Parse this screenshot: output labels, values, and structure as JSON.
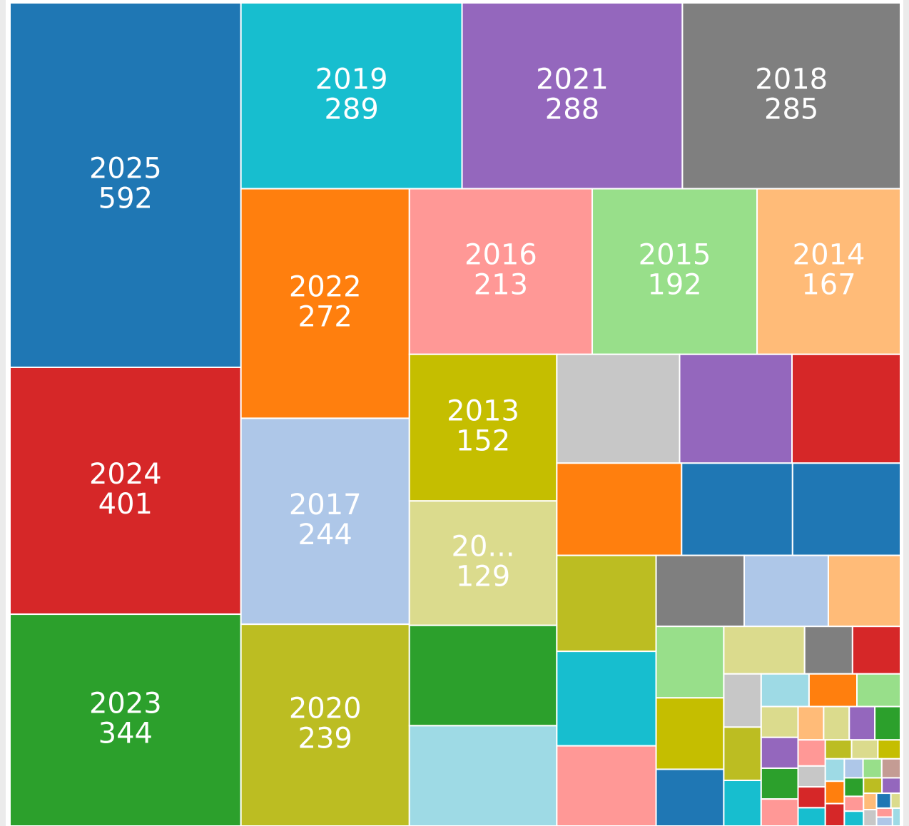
{
  "chart_data": {
    "type": "treemap",
    "categories": [
      "2025",
      "2024",
      "2023",
      "2019",
      "2021",
      "2018",
      "2022",
      "2017",
      "2020",
      "2016",
      "2015",
      "2014",
      "2013",
      "20...",
      null,
      null,
      null,
      null,
      null,
      null,
      null,
      null,
      null,
      null,
      null,
      null,
      null,
      null,
      null,
      null,
      null,
      null,
      null,
      null,
      null,
      null,
      null,
      null,
      null,
      null,
      null,
      null,
      null,
      null,
      null,
      null,
      null,
      null,
      null,
      null,
      null,
      null,
      null,
      null,
      null,
      null,
      null,
      null,
      null,
      null,
      null,
      null,
      null,
      null,
      null,
      null,
      null,
      null,
      null,
      null,
      null,
      null,
      null
    ],
    "values": [
      592,
      401,
      344,
      289,
      288,
      285,
      272,
      244,
      239,
      213,
      192,
      167,
      152,
      129,
      104,
      104,
      94,
      86,
      83,
      81,
      72,
      70,
      67,
      66,
      56,
      44,
      42,
      36,
      34,
      34,
      27,
      27,
      16,
      16,
      14,
      14,
      12,
      11,
      11,
      10,
      8,
      8,
      8,
      7,
      6,
      6,
      6,
      6,
      5,
      4,
      4,
      3.5,
      3.5,
      3.5,
      3,
      3,
      3,
      3,
      2.5,
      2.5,
      2.5,
      2.5,
      2,
      2,
      2,
      2,
      1.5,
      1.5,
      1.5,
      1,
      1,
      1,
      1
    ],
    "colors": [
      "#1f77b4",
      "#d62728",
      "#2ca02c",
      "#17becf",
      "#9467bd",
      "#7f7f7f",
      "#ff7f0e",
      "#aec7e8",
      "#bcbd22",
      "#ff9896",
      "#98df8a",
      "#ffbb78",
      "#c5be00",
      "#dbdb8d",
      "#2ca02c",
      "#9edae5",
      "#c7c7c7",
      "#9467bd",
      "#d62728",
      "#ff7f0e",
      "#1f77b4",
      "#1f77b4",
      "#bcbd22",
      "#17becf",
      "#ff9896",
      "#7f7f7f",
      "#aec7e8",
      "#ffbb78",
      "#98df8a",
      "#c5be00",
      "#1f77b4",
      "#dbdb8d",
      "#7f7f7f",
      "#d62728",
      "#c7c7c7",
      "#bcbd22",
      "#17becf",
      "#9edae5",
      "#ff7f0e",
      "#98df8a",
      "#dbdb8d",
      "#9467bd",
      "#2ca02c",
      "#ff9896",
      "#ffbb78",
      "#dbdb8d",
      "#9467bd",
      "#2ca02c",
      "#ff9896",
      "#c7c7c7",
      "#d62728",
      "#17becf",
      "#bcbd22",
      "#dbdb8d",
      "#c5be00",
      "#9edae5",
      "#ff7f0e",
      "#d62728",
      "#aec7e8",
      "#98df8a",
      "#c49c94",
      "#2ca02c",
      "#ff9896",
      "#17becf",
      "#bcbd22",
      "#9467bd",
      "#ffbb78",
      "#c7c7c7",
      "#1f77b4",
      "#dbdb8d",
      "#ff9896",
      "#aec7e8",
      "#9edae5"
    ]
  }
}
